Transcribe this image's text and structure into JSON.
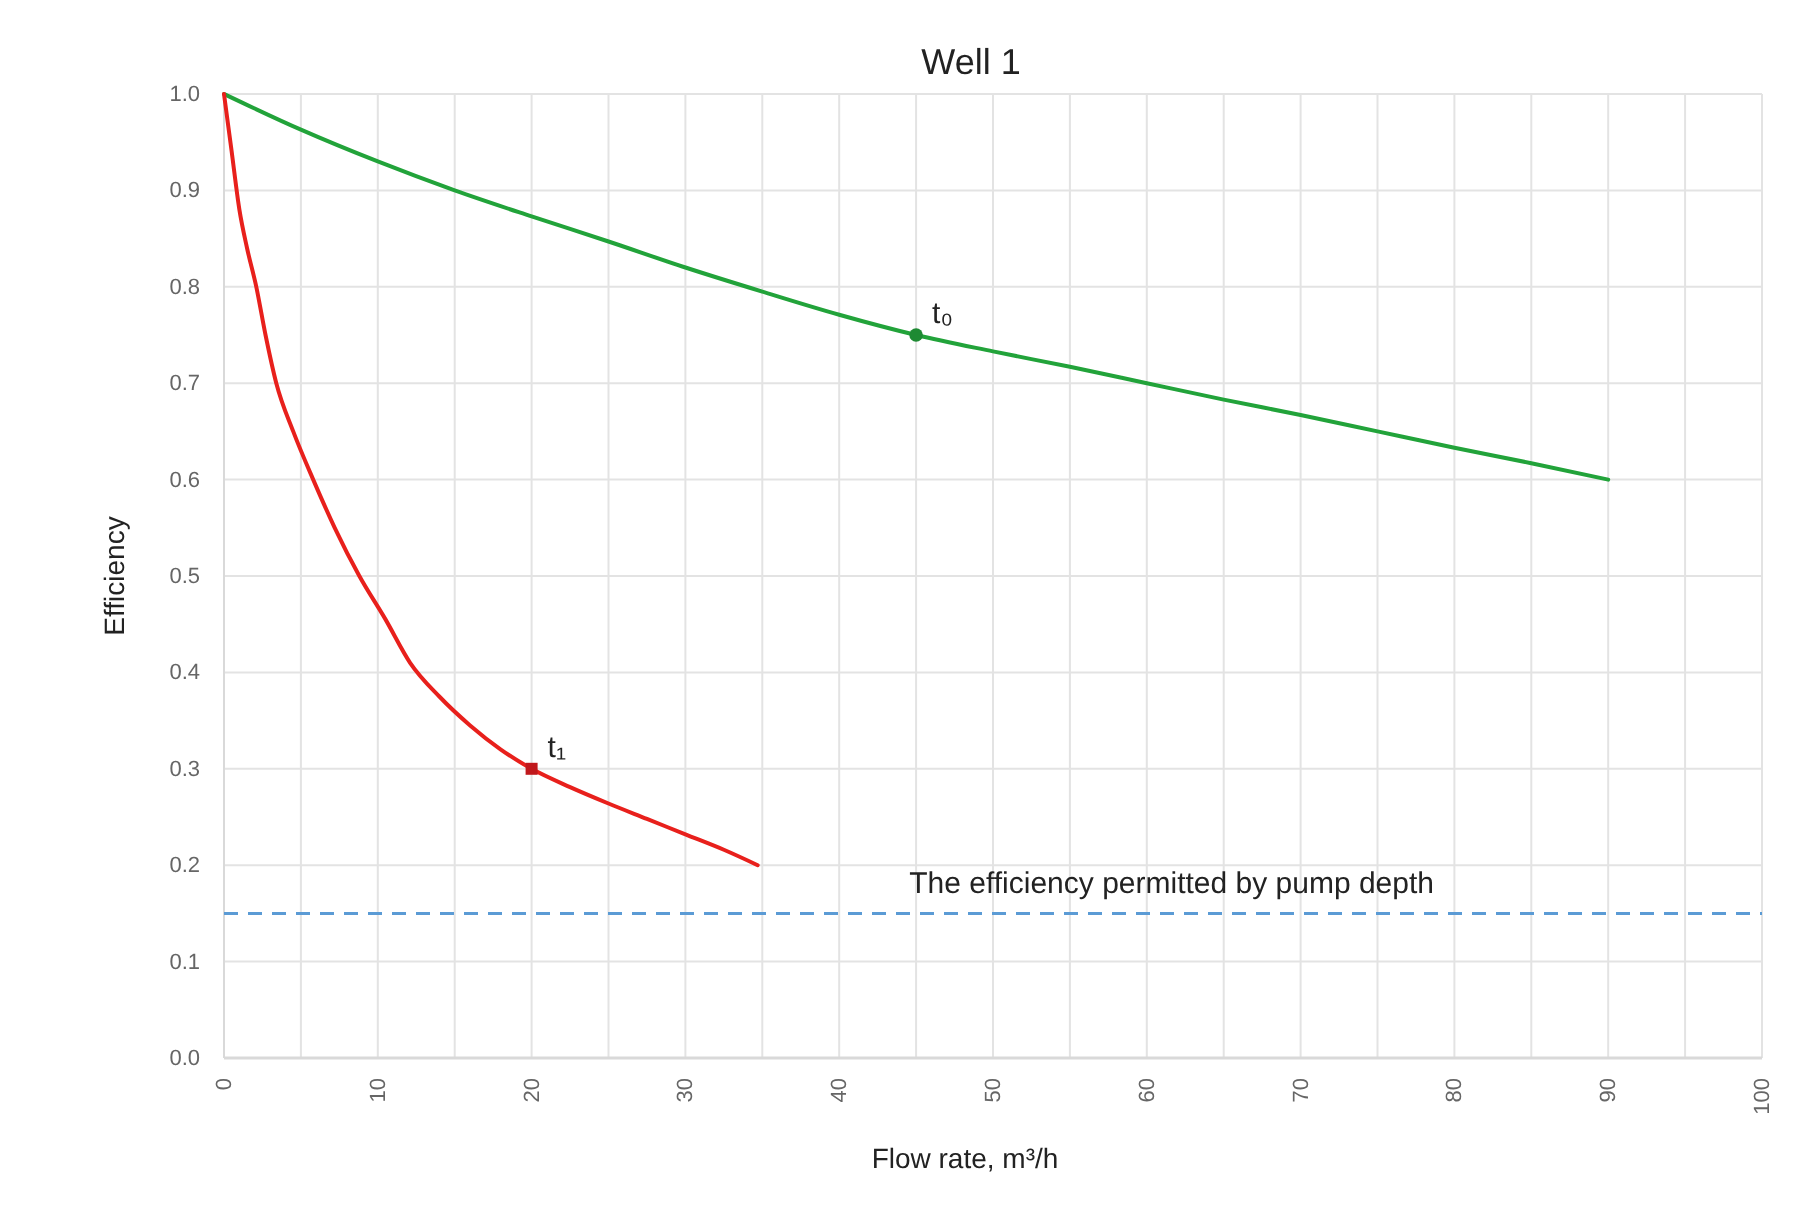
{
  "chart_data": {
    "type": "line",
    "title": "Well 1",
    "xlabel": "Flow rate, m³/h",
    "ylabel": "Efficiency",
    "xlim": [
      0,
      100
    ],
    "ylim": [
      0,
      1
    ],
    "xticks": [
      0,
      {
        "value": 5,
        "label": null
      },
      10,
      {
        "value": 15,
        "label": null
      },
      20,
      {
        "value": 25,
        "label": null
      },
      30,
      {
        "value": 35,
        "label": null
      },
      40,
      {
        "value": 45,
        "label": null
      },
      50,
      {
        "value": 55,
        "label": null
      },
      60,
      {
        "value": 65,
        "label": null
      },
      70,
      {
        "value": 75,
        "label": null
      },
      80,
      {
        "value": 85,
        "label": null
      },
      90,
      {
        "value": 95,
        "label": null
      },
      100
    ],
    "yticks": [
      {
        "value": 0,
        "label": "0.0"
      },
      0.1,
      0.2,
      0.3,
      0.4,
      0.5,
      0.6,
      0.7,
      0.8,
      0.9,
      {
        "value": 1,
        "label": "1.0"
      }
    ],
    "grid": true,
    "marker": "none",
    "line_style": "solid",
    "series": [
      {
        "color": "#22a33a",
        "x": [
          0,
          5,
          10,
          15,
          20,
          25,
          30,
          35,
          40,
          45,
          50,
          55,
          60,
          65,
          70,
          75,
          80,
          85,
          90
        ],
        "values": [
          1.0,
          0.963,
          0.93,
          0.9,
          0.873,
          0.847,
          0.82,
          0.795,
          0.771,
          0.75,
          0.733,
          0.717,
          0.7,
          0.683,
          0.667,
          0.65,
          0.633,
          0.617,
          0.6
        ]
      },
      {
        "color": "#e8201c",
        "x": [
          0,
          0.5,
          1,
          1.5,
          2.1,
          2.7,
          3.4,
          4.5,
          5.8,
          7.2,
          8.8,
          10.5,
          12.1,
          14,
          16,
          18,
          20,
          22.5,
          25,
          27.5,
          30,
          32.5,
          34.7
        ],
        "values": [
          1.0,
          0.94,
          0.88,
          0.84,
          0.8,
          0.75,
          0.7,
          0.65,
          0.6,
          0.55,
          0.5,
          0.455,
          0.41,
          0.375,
          0.345,
          0.32,
          0.3,
          0.281,
          0.264,
          0.248,
          0.232,
          0.216,
          0.2
        ]
      },
      {
        "type": "scatter",
        "color": "#1e8a33",
        "marker": "circle",
        "x": [
          45
        ],
        "values": [
          0.75
        ]
      },
      {
        "type": "scatter",
        "color": "#c0181c",
        "marker": "square",
        "x": [
          20
        ],
        "values": [
          0.3
        ]
      }
    ],
    "ref_lines": [
      {
        "axis": "y",
        "value": 0.15,
        "label": "The efficiency permitted by pump depth",
        "color": "#5b9bd5",
        "line_style": "dashed"
      }
    ],
    "annotations": [
      {
        "text": "t₀",
        "x": 45,
        "y": 0.75
      },
      {
        "text": "t₁",
        "x": 20,
        "y": 0.3
      }
    ]
  }
}
